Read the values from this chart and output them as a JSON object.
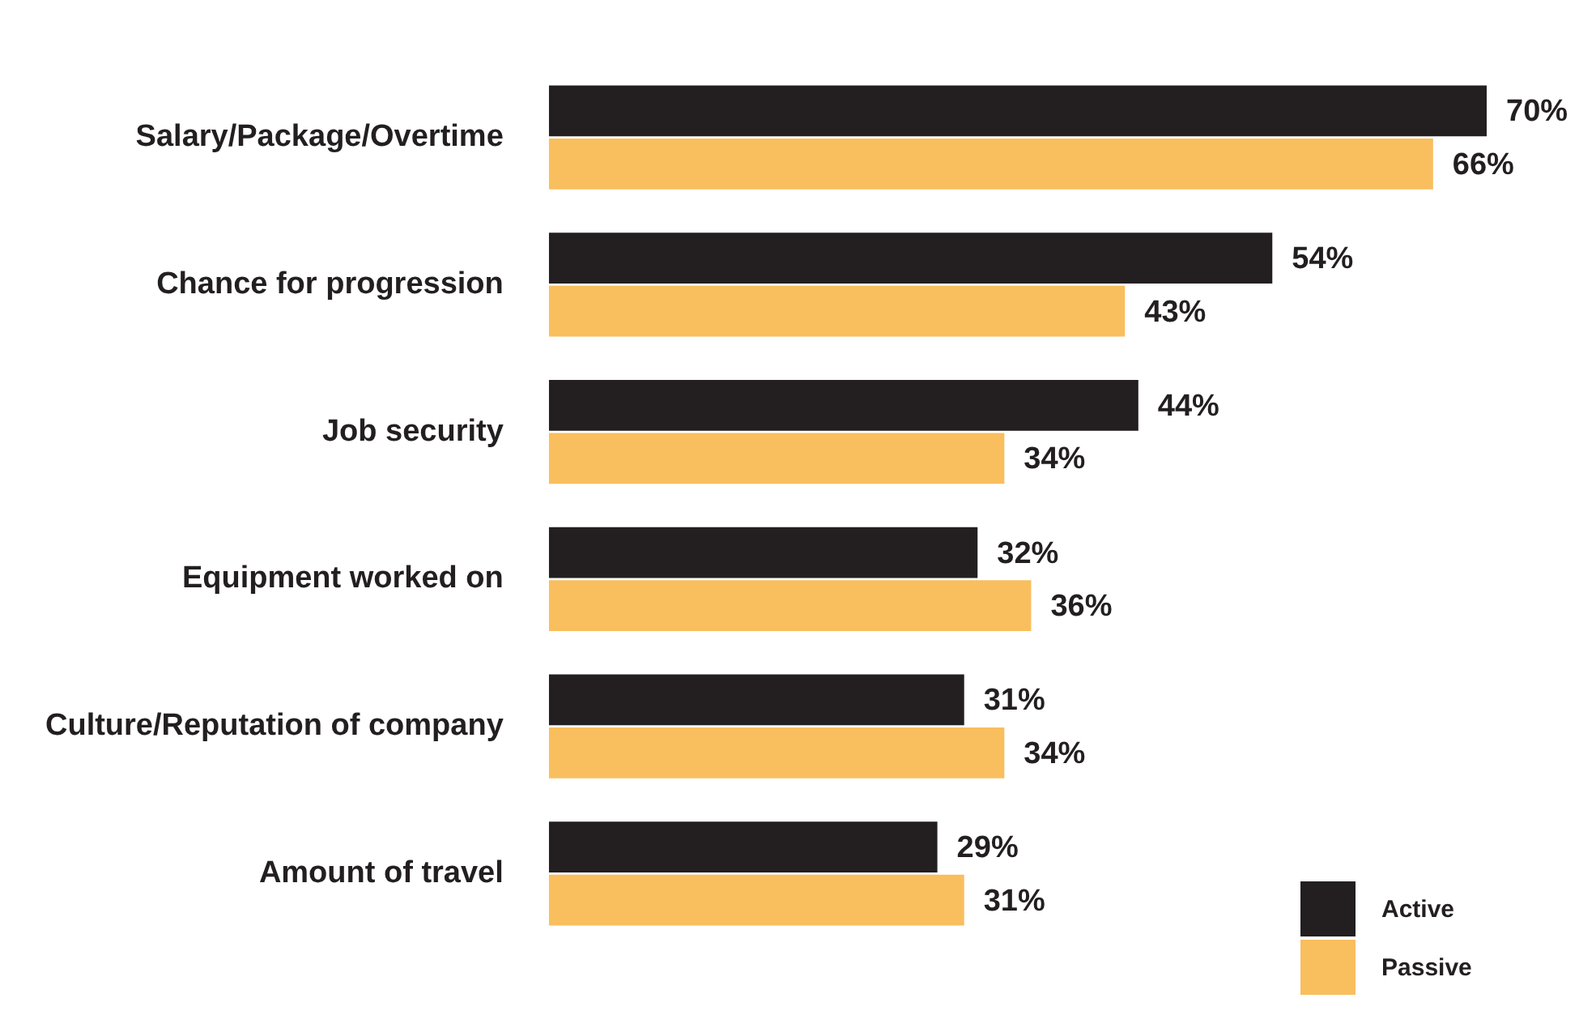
{
  "chart_data": {
    "type": "bar",
    "orientation": "horizontal",
    "categories": [
      "Salary/Package/Overtime",
      "Chance for progression",
      "Job security",
      "Equipment worked on",
      "Culture/Reputation of company",
      "Amount of travel"
    ],
    "series": [
      {
        "name": "Active",
        "color": "#231f20",
        "values": [
          70,
          54,
          44,
          32,
          31,
          29
        ],
        "value_labels": [
          "70%",
          "54%",
          "44%",
          "32%",
          "31%",
          "29%"
        ]
      },
      {
        "name": "Passive",
        "color": "#f9be5e",
        "values": [
          66,
          43,
          34,
          36,
          34,
          31
        ],
        "value_labels": [
          "66%",
          "43%",
          "34%",
          "36%",
          "34%",
          "31%"
        ]
      }
    ],
    "xlim": [
      0,
      70
    ],
    "tick_labels": "y",
    "grid": false,
    "legend": "bottom right"
  }
}
